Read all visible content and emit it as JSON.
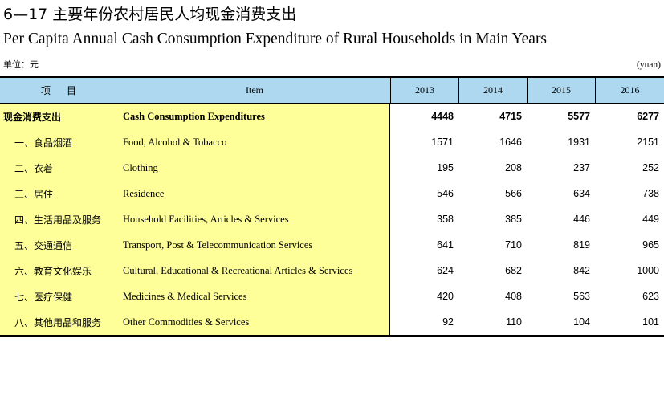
{
  "title_cn": "6—17  主要年份农村居民人均现金消费支出",
  "title_en": "Per Capita Annual Cash Consumption Expenditure of Rural Households in Main Years",
  "unit_cn": "单位：元",
  "unit_en": "(yuan)",
  "header": {
    "item_cn": "项目",
    "item_en": "Item",
    "years": [
      "2013",
      "2014",
      "2015",
      "2016"
    ]
  },
  "rows": [
    {
      "cn": "现金消费支出",
      "en": "Cash Consumption Expenditures",
      "values": [
        "4448",
        "4715",
        "5577",
        "6277"
      ]
    },
    {
      "cn": "一、食品烟酒",
      "en": "Food, Alcohol & Tobacco",
      "values": [
        "1571",
        "1646",
        "1931",
        "2151"
      ]
    },
    {
      "cn": "二、衣着",
      "en": "Clothing",
      "values": [
        "195",
        "208",
        "237",
        "252"
      ]
    },
    {
      "cn": "三、居住",
      "en": "Residence",
      "values": [
        "546",
        "566",
        "634",
        "738"
      ]
    },
    {
      "cn": "四、生活用品及服务",
      "en": "Household Facilities, Articles & Services",
      "values": [
        "358",
        "385",
        "446",
        "449"
      ]
    },
    {
      "cn": "五、交通通信",
      "en": "Transport, Post & Telecommunication Services",
      "values": [
        "641",
        "710",
        "819",
        "965"
      ]
    },
    {
      "cn": "六、教育文化娱乐",
      "en": "Cultural, Educational & Recreational Articles & Services",
      "values": [
        "624",
        "682",
        "842",
        "1000"
      ]
    },
    {
      "cn": "七、医疗保健",
      "en": "Medicines & Medical Services",
      "values": [
        "420",
        "408",
        "563",
        "623"
      ]
    },
    {
      "cn": "八、其他用品和服务",
      "en": "Other Commodities & Services",
      "values": [
        "92",
        "110",
        "104",
        "101"
      ]
    }
  ]
}
